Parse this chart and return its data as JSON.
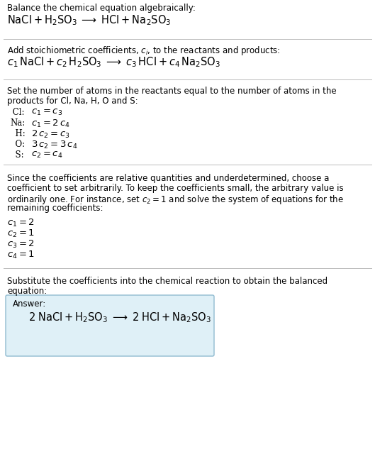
{
  "bg_color": "#ffffff",
  "text_color": "#000000",
  "line_color": "#bbbbbb",
  "section1_header": "Balance the chemical equation algebraically:",
  "section1_eq": "$\\mathrm{NaCl + H_2SO_3 \\;\\longrightarrow\\; HCl + Na_2SO_3}$",
  "section2_header": "Add stoichiometric coefficients, $c_i$, to the reactants and products:",
  "section2_eq": "$c_1\\,\\mathrm{NaCl} + c_2\\,\\mathrm{H_2SO_3} \\;\\longrightarrow\\; c_3\\,\\mathrm{HCl} + c_4\\,\\mathrm{Na_2SO_3}$",
  "section3_header_line1": "Set the number of atoms in the reactants equal to the number of atoms in the",
  "section3_header_line2": "products for Cl, Na, H, O and S:",
  "section3_equations": [
    [
      " Cl:",
      "$c_1 = c_3$"
    ],
    [
      "Na:",
      "$c_1 = 2\\,c_4$"
    ],
    [
      "  H:",
      "$2\\,c_2 = c_3$"
    ],
    [
      "  O:",
      "$3\\,c_2 = 3\\,c_4$"
    ],
    [
      "  S:",
      "$c_2 = c_4$"
    ]
  ],
  "section4_header_lines": [
    "Since the coefficients are relative quantities and underdetermined, choose a",
    "coefficient to set arbitrarily. To keep the coefficients small, the arbitrary value is",
    "ordinarily one. For instance, set $c_2 = 1$ and solve the system of equations for the",
    "remaining coefficients:"
  ],
  "section4_equations": [
    "$c_1 = 2$",
    "$c_2 = 1$",
    "$c_3 = 2$",
    "$c_4 = 1$"
  ],
  "section5_header_line1": "Substitute the coefficients into the chemical reaction to obtain the balanced",
  "section5_header_line2": "equation:",
  "answer_label": "Answer:",
  "answer_eq": "$\\mathrm{2\\;NaCl + H_2SO_3 \\;\\longrightarrow\\; 2\\;HCl + Na_2SO_3}$",
  "answer_box_color": "#dff0f7",
  "answer_box_edge": "#90bbd0",
  "font_size_text": 8.5,
  "font_size_eq": 9.5,
  "font_size_eq_large": 10.5
}
